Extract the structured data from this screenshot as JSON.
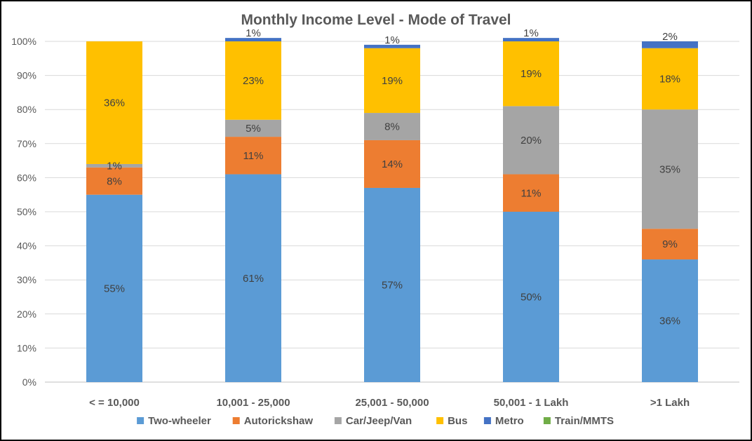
{
  "chart_data": {
    "type": "bar",
    "stacked": true,
    "title": "Monthly Income Level - Mode of Travel",
    "xlabel": "",
    "ylabel": "",
    "ylim": [
      0,
      100
    ],
    "yticks": [
      "0%",
      "10%",
      "20%",
      "30%",
      "40%",
      "50%",
      "60%",
      "70%",
      "80%",
      "90%",
      "100%"
    ],
    "grid": true,
    "legend_position": "bottom",
    "categories": [
      "< = 10,000",
      "10,001 - 25,000",
      "25,001 - 50,000",
      "50,001 - 1 Lakh",
      ">1 Lakh"
    ],
    "series": [
      {
        "name": "Two-wheeler",
        "color": "#5B9BD5",
        "values": [
          55,
          61,
          57,
          50,
          36
        ],
        "labels": [
          "55%",
          "61%",
          "57%",
          "50%",
          "36%"
        ]
      },
      {
        "name": "Autorickshaw",
        "color": "#ED7D31",
        "values": [
          8,
          11,
          14,
          11,
          9
        ],
        "labels": [
          "8%",
          "11%",
          "14%",
          "11%",
          "9%"
        ]
      },
      {
        "name": "Car/Jeep/Van",
        "color": "#A5A5A5",
        "values": [
          1,
          5,
          8,
          20,
          35
        ],
        "labels": [
          "1%",
          "5%",
          "8%",
          "20%",
          "35%"
        ]
      },
      {
        "name": "Bus",
        "color": "#FFC000",
        "values": [
          36,
          23,
          19,
          19,
          18
        ],
        "labels": [
          "36%",
          "23%",
          "19%",
          "19%",
          "18%"
        ]
      },
      {
        "name": "Metro",
        "color": "#4472C4",
        "values": [
          0,
          1,
          1,
          1,
          2
        ],
        "labels": [
          "",
          "1%",
          "1%",
          "1%",
          "2%"
        ]
      },
      {
        "name": "Train/MMTS",
        "color": "#70AD47",
        "values": [
          0,
          0,
          0,
          0,
          0
        ],
        "labels": [
          "",
          "",
          "",
          "",
          ""
        ]
      }
    ]
  }
}
